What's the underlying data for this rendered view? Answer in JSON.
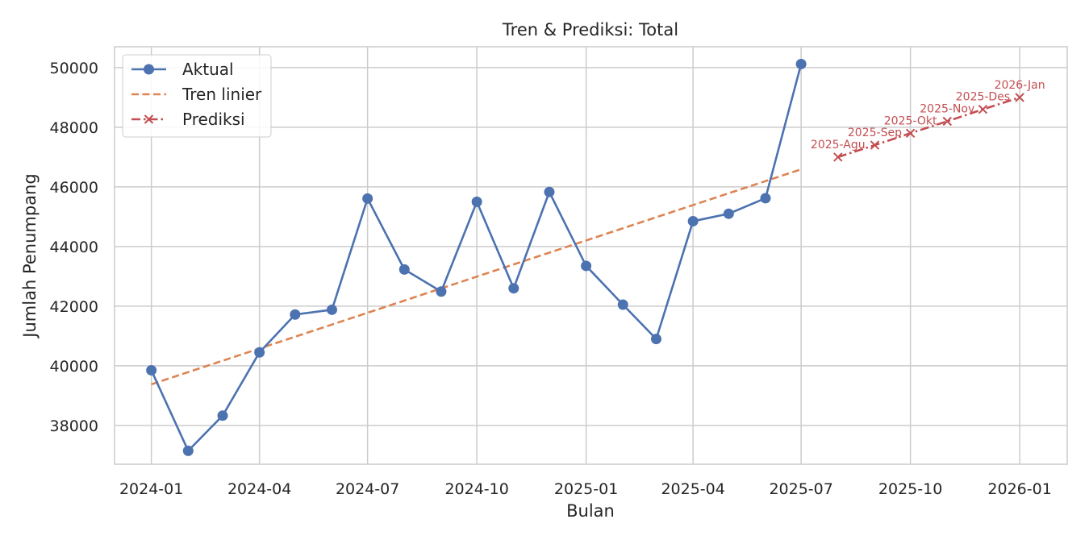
{
  "chart_data": {
    "type": "line",
    "title": "Tren & Prediksi: Total",
    "xlabel": "Bulan",
    "ylabel": "Jumlah Penumpang",
    "xlim": [
      "2023-12-01",
      "2026-02-10"
    ],
    "ylim": [
      36700,
      50700
    ],
    "grid": true,
    "legend_position": "top-left",
    "x_ticks": [
      "2024-01",
      "2024-04",
      "2024-07",
      "2024-10",
      "2025-01",
      "2025-04",
      "2025-07",
      "2025-10",
      "2026-01"
    ],
    "y_ticks": [
      38000,
      40000,
      42000,
      44000,
      46000,
      48000,
      50000
    ],
    "series": [
      {
        "name": "Aktual",
        "style": "line-marker-circle",
        "color": "#4c72b0",
        "x": [
          "2024-01",
          "2024-02",
          "2024-03",
          "2024-04",
          "2024-05",
          "2024-06",
          "2024-07",
          "2024-08",
          "2024-09",
          "2024-10",
          "2024-11",
          "2024-12",
          "2025-01",
          "2025-02",
          "2025-03",
          "2025-04",
          "2025-05",
          "2025-06",
          "2025-07"
        ],
        "y": [
          39850,
          37150,
          38330,
          40450,
          41720,
          41880,
          45610,
          43230,
          42490,
          45500,
          42600,
          45830,
          43350,
          42050,
          40900,
          44850,
          45100,
          45620,
          50120
        ]
      },
      {
        "name": "Tren linier",
        "style": "dashed",
        "color": "#dd8452",
        "x": [
          "2024-01",
          "2025-07"
        ],
        "y": [
          39380,
          46590
        ]
      },
      {
        "name": "Prediksi",
        "style": "dashdot-marker-x",
        "color": "#c44e52",
        "x": [
          "2025-08",
          "2025-09",
          "2025-10",
          "2025-11",
          "2025-12",
          "2026-01"
        ],
        "y": [
          47000,
          47400,
          47800,
          48200,
          48600,
          49000
        ],
        "labels": [
          "2025-Agu",
          "2025-Sep",
          "2025-Okt",
          "2025-Nov",
          "2025-Des",
          "2026-Jan"
        ]
      }
    ]
  }
}
